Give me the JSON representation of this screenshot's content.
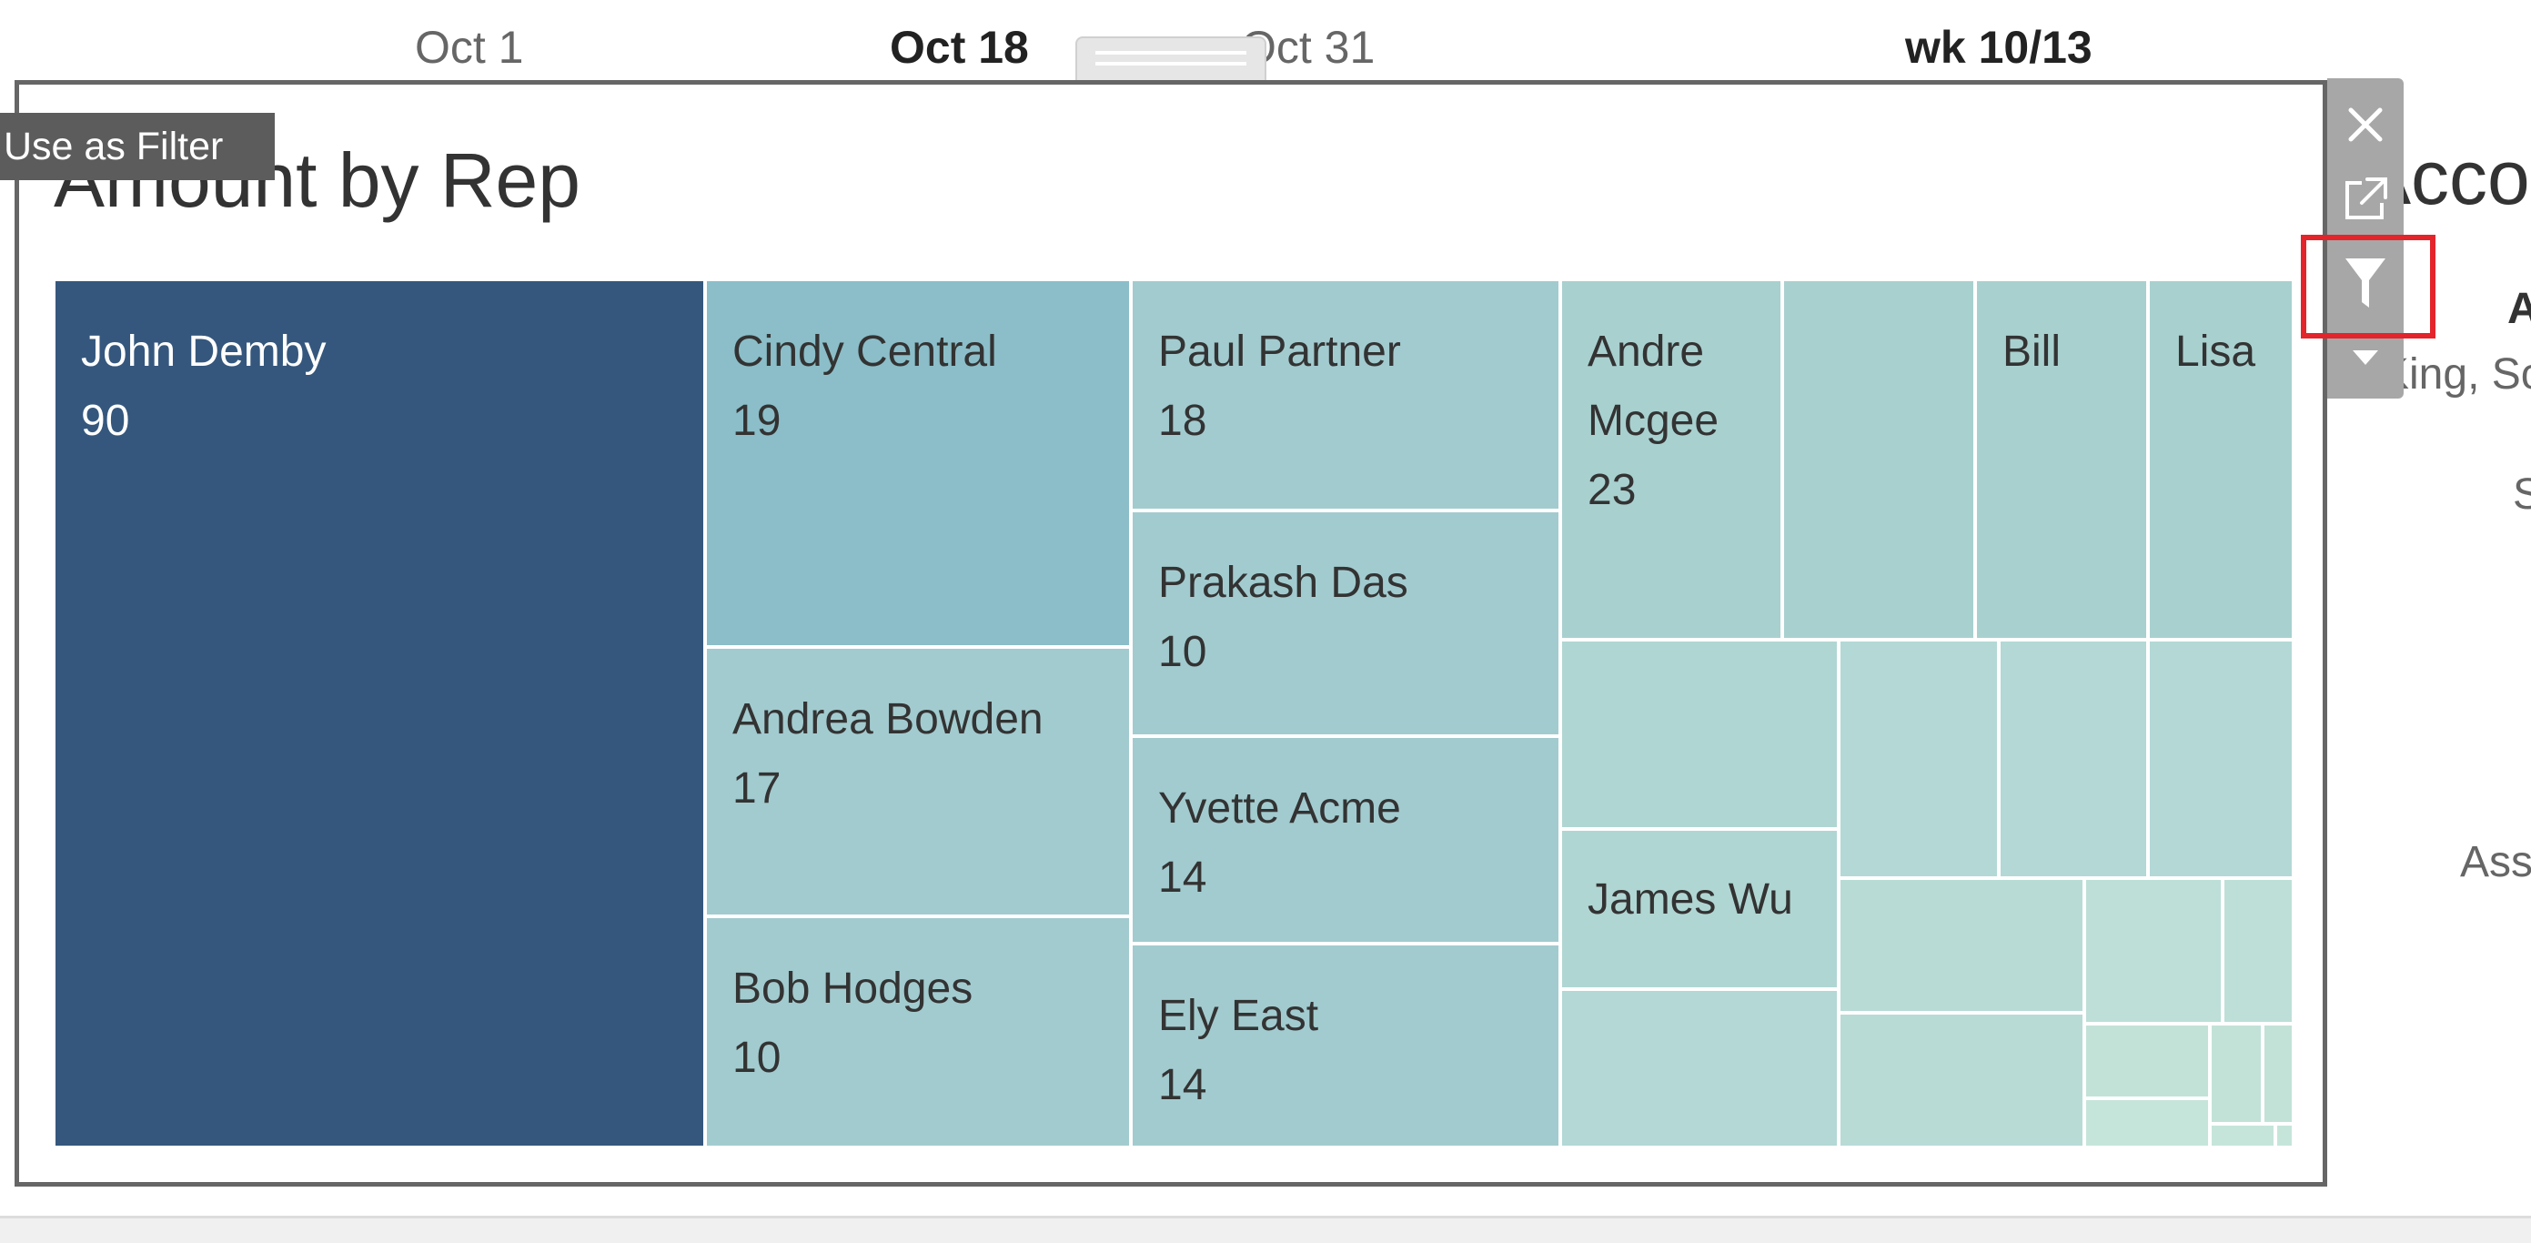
{
  "date_strip": {
    "oct1": "Oct 1",
    "oct18": "Oct 18",
    "oct31": "Oct 31",
    "week": "wk 10/13"
  },
  "viz": {
    "title": "Amount by Rep",
    "tooltip": "Use as Filter"
  },
  "right_panel": {
    "title_partial": "Accou",
    "bold_partial": "A",
    "line1_partial": "King, Sc",
    "line2_partial": "S",
    "line3_partial": "Ass"
  },
  "toolbar": {
    "icons": [
      "close-icon",
      "popout-icon",
      "filter-icon",
      "dropdown-arrow-icon"
    ],
    "accent_color": "#e3242b"
  },
  "chart_data": {
    "type": "treemap",
    "title": "Amount by Rep",
    "cells": [
      {
        "name": "John Demby",
        "value": 90
      },
      {
        "name": "Cindy Central",
        "value": 19
      },
      {
        "name": "Andrea Bowden",
        "value": 17
      },
      {
        "name": "Bob Hodges",
        "value": 10
      },
      {
        "name": "Paul Partner",
        "value": 18
      },
      {
        "name": "Prakash Das",
        "value": 10
      },
      {
        "name": "Yvette Acme",
        "value": 14
      },
      {
        "name": "Ely East",
        "value": 14
      },
      {
        "name": "Andre\nMcgee",
        "value": 23
      },
      {
        "name": "Bill",
        "value": null
      },
      {
        "name": "Lisa",
        "value": null
      },
      {
        "name": "James Wu",
        "value": null
      }
    ],
    "colors": {
      "dark": "#35577d",
      "mid": "#8bbec8",
      "light": "#a2cbcf",
      "lighter": "#b3d8d6",
      "lightest": "#c2e2d8"
    }
  }
}
